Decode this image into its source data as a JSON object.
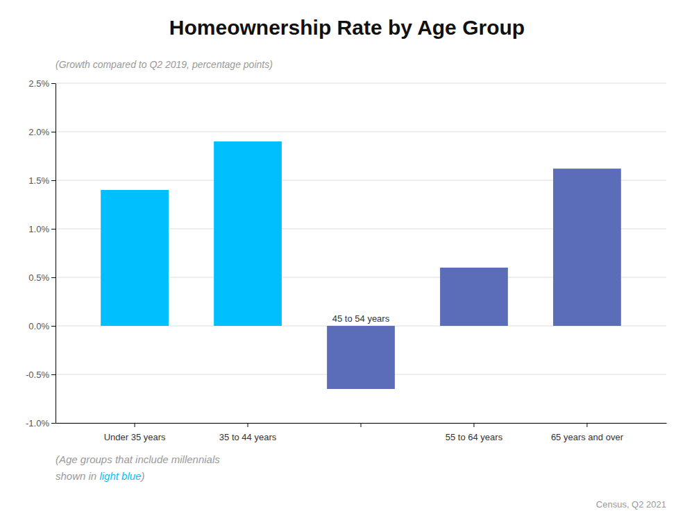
{
  "chart_data": {
    "type": "bar",
    "title": "Homeownership Rate by Age Group",
    "subtitle": "(Growth compared to Q2 2019, percentage points)",
    "categories": [
      "Under 35 years",
      "35 to 44 years",
      null,
      "55 to 64 years",
      "65 years and over"
    ],
    "values": [
      1.4,
      1.9,
      -0.65,
      0.6,
      1.62
    ],
    "colors": [
      "#00BFFF",
      "#00BFFF",
      "#5B6DB8",
      "#5B6DB8",
      "#5B6DB8"
    ],
    "ylim": [
      -1.0,
      2.5
    ],
    "yticks": [
      {
        "value": -1.0,
        "label": "-1.0%"
      },
      {
        "value": -0.5,
        "label": "-0.5%"
      },
      {
        "value": 0.0,
        "label": "0.0%"
      },
      {
        "value": 0.5,
        "label": "0.5%"
      },
      {
        "value": 1.0,
        "label": "1.0%"
      },
      {
        "value": 1.5,
        "label": "1.5%"
      },
      {
        "value": 2.0,
        "label": "2.0%"
      },
      {
        "value": 2.5,
        "label": "2.5%"
      }
    ],
    "grid": true,
    "annotations": [
      "45 to 54 years"
    ],
    "footnote": [
      [
        {
          "text": "(Age groups that include millennials"
        }
      ],
      [
        {
          "text": "shown in "
        },
        {
          "text": "light blue",
          "color": "#00BFFF"
        },
        {
          "text": ")"
        }
      ]
    ],
    "source": "Census, Q2 2021"
  }
}
